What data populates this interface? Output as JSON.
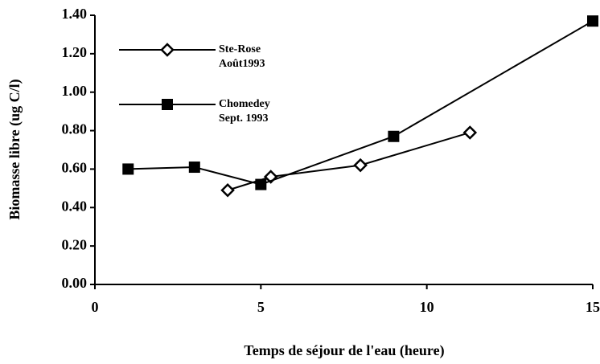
{
  "chart_data": {
    "type": "line",
    "xlabel": "Temps de séjour de l'eau (heure)",
    "ylabel": "Biomasse libre (ug C/l)",
    "xlim": [
      0,
      15
    ],
    "xticks": [
      0,
      5,
      10,
      15
    ],
    "ylim": [
      0,
      1.4
    ],
    "yticks": [
      {
        "value": 0,
        "label": "0.00"
      },
      {
        "value": 0.2,
        "label": "0.20"
      },
      {
        "value": 0.4,
        "label": "0.40"
      },
      {
        "value": 0.6,
        "label": "0.60"
      },
      {
        "value": 0.8,
        "label": "0.80"
      },
      {
        "value": 1.0,
        "label": "1.00"
      },
      {
        "value": 1.2,
        "label": "1.20"
      },
      {
        "value": 1.4,
        "label": "1.40"
      }
    ],
    "series": [
      {
        "name": "Ste-Rose\nAoût1993",
        "marker": "diamond",
        "color": "#000000",
        "x": [
          4,
          5.3,
          8,
          11.3
        ],
        "values": [
          0.49,
          0.56,
          0.62,
          0.79
        ]
      },
      {
        "name": "Chomedey\nSept. 1993",
        "marker": "square",
        "color": "#000000",
        "x": [
          1,
          3,
          5,
          9,
          15
        ],
        "values": [
          0.6,
          0.61,
          0.52,
          0.77,
          1.37
        ]
      }
    ]
  }
}
